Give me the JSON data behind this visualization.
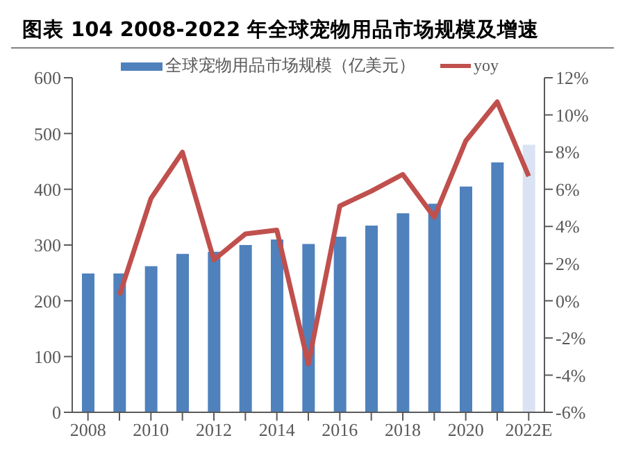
{
  "chart_data": {
    "type": "bar",
    "title": "图表 104 2008-2022 年全球宠物用品市场规模及增速",
    "categories": [
      "2008",
      null,
      "2010",
      null,
      "2012",
      null,
      "2014",
      null,
      "2016",
      null,
      "2018",
      null,
      "2020",
      null,
      "2022E"
    ],
    "series": [
      {
        "name": "全球宠物用品市场规模（亿美元）",
        "color": "#4f81bd",
        "colors": [
          "#4f81bd",
          "#4f81bd",
          "#4f81bd",
          "#4f81bd",
          "#4f81bd",
          "#4f81bd",
          "#4f81bd",
          "#4f81bd",
          "#4f81bd",
          "#4f81bd",
          "#4f81bd",
          "#4f81bd",
          "#4f81bd",
          "#4f81bd",
          "#dae3f3"
        ],
        "values": [
          249,
          249,
          262,
          284,
          288,
          300,
          310,
          302,
          315,
          335,
          357,
          374,
          405,
          448,
          480
        ]
      },
      {
        "name": "yoy",
        "type": "line",
        "axis": "y2",
        "color": "#c0504d",
        "values": [
          null,
          0.3,
          5.5,
          8.0,
          2.2,
          3.6,
          3.8,
          -3.4,
          5.1,
          5.9,
          6.8,
          4.5,
          8.6,
          10.7,
          6.7
        ]
      }
    ],
    "ylim": [
      0,
      600
    ],
    "yticks": [
      0,
      100,
      200,
      300,
      400,
      500,
      600
    ],
    "y2lim": [
      -6,
      12
    ],
    "y2ticks": [
      {
        "value": -6,
        "label": "-6%"
      },
      {
        "value": -4,
        "label": "-4%"
      },
      {
        "value": -2,
        "label": "-2%"
      },
      {
        "value": 0,
        "label": "0%"
      },
      {
        "value": 2,
        "label": "2%"
      },
      {
        "value": 4,
        "label": "4%"
      },
      {
        "value": 6,
        "label": "6%"
      },
      {
        "value": 8,
        "label": "8%"
      },
      {
        "value": 10,
        "label": "10%"
      },
      {
        "value": 12,
        "label": "12%"
      }
    ],
    "grid": false,
    "legend": "top",
    "marker": "none"
  }
}
